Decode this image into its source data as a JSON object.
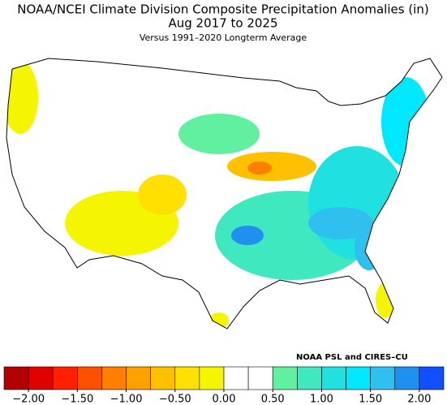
{
  "header": {
    "title": "NOAA/NCEI Climate Division Composite Precipitation Anomalies (in)",
    "period": "Aug 2017 to 2025",
    "subtitle": "Versus 1991–2020 Longterm Average"
  },
  "credit": "NOAA PSL and CIRES–CU",
  "colorbar": {
    "range": [
      -2.25,
      2.25
    ],
    "colors": [
      "#b30000",
      "#e00000",
      "#ff2000",
      "#ff5000",
      "#ff7f00",
      "#ffa000",
      "#ffc000",
      "#ffe000",
      "#f5f500",
      "#ffffff",
      "#ffffff",
      "#60f0a0",
      "#40e8c0",
      "#20e0e0",
      "#00e8ff",
      "#30c0f0",
      "#2090f0",
      "#1050ff"
    ],
    "ticks": [
      {
        "value": -2,
        "label": "−2.00"
      },
      {
        "value": -1.5,
        "label": "−1.50"
      },
      {
        "value": -1,
        "label": "−1.00"
      },
      {
        "value": -0.5,
        "label": "−0.50"
      },
      {
        "value": 0,
        "label": "0.00"
      },
      {
        "value": 0.5,
        "label": "0.50"
      },
      {
        "value": 1,
        "label": "1.00"
      },
      {
        "value": 1.5,
        "label": "1.50"
      },
      {
        "value": 2,
        "label": "2.00"
      }
    ]
  }
}
